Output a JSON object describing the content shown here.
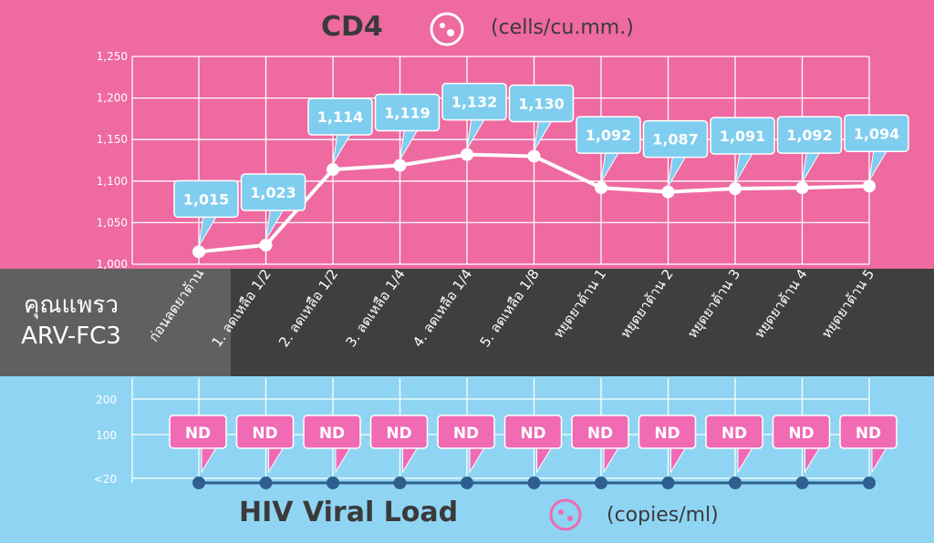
{
  "patient": {
    "name": "คุณแพรว",
    "code": "ARV-FC3"
  },
  "colors": {
    "pink": "#ee6aa0",
    "blue": "#8fd5f3",
    "callout_blue": "#7fcdef",
    "callout_pink": "#f06ab4",
    "line_blue": "#2f5f8f"
  },
  "chart_data": [
    {
      "type": "line",
      "title": "CD4",
      "unit": "(cells/cu.mm.)",
      "categories": [
        "ก่อนลดยาต้าน",
        "1. ลดเหลือ 1/2",
        "2. ลดเหลือ 1/2",
        "3. ลดเหลือ 1/4",
        "4. ลดเหลือ 1/4",
        "5. ลดเหลือ 1/8",
        "หยุดยาต้าน 1",
        "หยุดยาต้าน 2",
        "หยุดยาต้าน 3",
        "หยุดยาต้าน 4",
        "หยุดยาต้าน 5"
      ],
      "values": [
        1015,
        1023,
        1114,
        1119,
        1132,
        1130,
        1092,
        1087,
        1091,
        1092,
        1094
      ],
      "data_labels": [
        "1,015",
        "1,023",
        "1,114",
        "1,119",
        "1,132",
        "1,130",
        "1,092",
        "1,087",
        "1,091",
        "1,092",
        "1,094"
      ],
      "ylim": [
        1000,
        1250
      ],
      "yticks": [
        "1,000",
        "1,050",
        "1,100",
        "1,150",
        "1,200",
        "1,250"
      ],
      "grid": true
    },
    {
      "type": "line",
      "title": "HIV Viral Load",
      "unit": "(copies/ml)",
      "yticks": [
        "<20",
        "100",
        "200"
      ],
      "values": [
        "<20",
        "<20",
        "<20",
        "<20",
        "<20",
        "<20",
        "<20",
        "<20",
        "<20",
        "<20",
        "<20"
      ],
      "data_labels": [
        "ND",
        "ND",
        "ND",
        "ND",
        "ND",
        "ND",
        "ND",
        "ND",
        "ND",
        "ND",
        "ND"
      ],
      "grid": true
    }
  ]
}
